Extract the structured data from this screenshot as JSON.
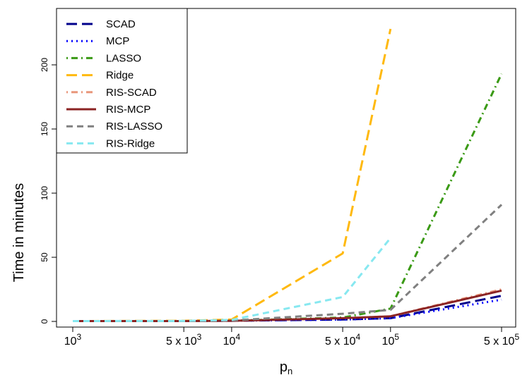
{
  "chart_data": {
    "type": "line",
    "title": "",
    "xlabel": "p",
    "xlabel_subscript": "n",
    "ylabel": "Time in minutes",
    "x_scale": "log",
    "x": [
      1000,
      5000,
      10000,
      50000,
      100000,
      500000
    ],
    "xticks": [
      {
        "value": 1000,
        "base": "10",
        "sup": "3"
      },
      {
        "value": 5000,
        "base": "5 x 10",
        "sup": "3"
      },
      {
        "value": 10000,
        "base": "10",
        "sup": "4"
      },
      {
        "value": 50000,
        "base": "5 x 10",
        "sup": "4"
      },
      {
        "value": 100000,
        "base": "10",
        "sup": "5"
      },
      {
        "value": 500000,
        "base": "5 x 10",
        "sup": "5"
      }
    ],
    "ylim": [
      0,
      250
    ],
    "yticks": [
      "0",
      "50",
      "100",
      "150",
      "200"
    ],
    "legend_position": "top-left",
    "series": [
      {
        "name": "SCAD",
        "color": "#00008B",
        "dash": "long-dash",
        "values": [
          0.3,
          0.3,
          0.5,
          1.5,
          2.5,
          20
        ]
      },
      {
        "name": "MCP",
        "color": "#0000FF",
        "dash": "dotted",
        "values": [
          0.3,
          0.3,
          0.5,
          1.5,
          2.5,
          17
        ]
      },
      {
        "name": "LASSO",
        "color": "#3A9A15",
        "dash": "dot-dash",
        "values": [
          0.3,
          0.3,
          0.6,
          3,
          10,
          193
        ]
      },
      {
        "name": "Ridge",
        "color": "#FFB90F",
        "dash": "long-dash",
        "values": [
          0.3,
          0.5,
          1.5,
          53,
          228,
          null
        ]
      },
      {
        "name": "RIS-SCAD",
        "color": "#E9967A",
        "dash": "dot-dash",
        "values": [
          0.3,
          0.3,
          0.5,
          2.5,
          4,
          25
        ]
      },
      {
        "name": "RIS-MCP",
        "color": "#8B2323",
        "dash": "solid",
        "values": [
          0.3,
          0.3,
          0.5,
          2.5,
          4,
          24
        ]
      },
      {
        "name": "RIS-LASSO",
        "color": "#808080",
        "dash": "dash",
        "values": [
          0.3,
          0.3,
          0.7,
          6,
          9,
          91
        ]
      },
      {
        "name": "RIS-Ridge",
        "color": "#87E8F0",
        "dash": "dash",
        "values": [
          0.3,
          0.4,
          1.2,
          19,
          65,
          null
        ]
      }
    ]
  }
}
